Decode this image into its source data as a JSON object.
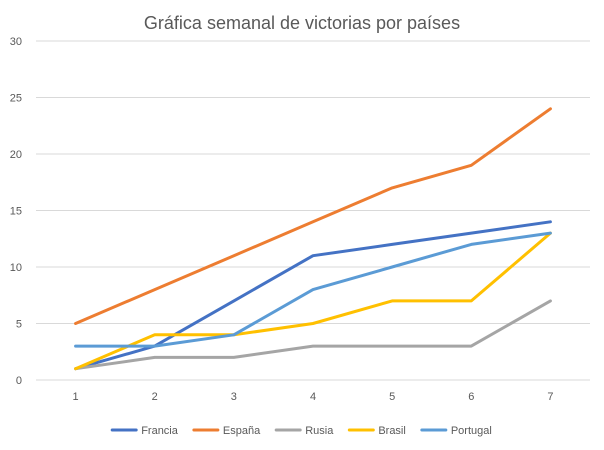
{
  "chart_data": {
    "type": "line",
    "title": "Gráfica semanal de victorias por países",
    "xlabel": "",
    "ylabel": "",
    "x": [
      "1",
      "2",
      "3",
      "4",
      "5",
      "6",
      "7"
    ],
    "ylim": [
      0,
      30
    ],
    "yticks": [
      "0",
      "5",
      "10",
      "15",
      "20",
      "25",
      "30"
    ],
    "grid": "horizontal",
    "legend_position": "bottom",
    "series": [
      {
        "name": "Francia",
        "color": "#4472C4",
        "values": [
          1,
          3,
          7,
          11,
          12,
          13,
          14
        ]
      },
      {
        "name": "España",
        "color": "#ED7D31",
        "values": [
          5,
          8,
          11,
          14,
          17,
          19,
          24
        ]
      },
      {
        "name": "Rusia",
        "color": "#A5A5A5",
        "values": [
          1,
          2,
          2,
          3,
          3,
          3,
          7
        ]
      },
      {
        "name": "Brasil",
        "color": "#FFC000",
        "values": [
          1,
          4,
          4,
          5,
          7,
          7,
          13
        ]
      },
      {
        "name": "Portugal",
        "color": "#5B9BD5",
        "values": [
          3,
          3,
          4,
          8,
          10,
          12,
          13
        ]
      }
    ]
  }
}
